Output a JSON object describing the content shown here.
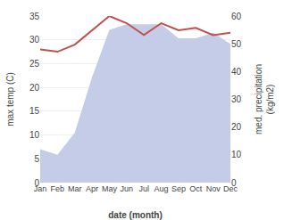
{
  "chart_data": {
    "type": "line",
    "xlabel": "date (month)",
    "ylabel": "max temp (C)",
    "y2label": "med. precipitation\n(kg/m2)",
    "categories": [
      "Jan",
      "Feb",
      "Mar",
      "Apr",
      "May",
      "Jun",
      "Jul",
      "Aug",
      "Sep",
      "Oct",
      "Nov",
      "Dec"
    ],
    "series": [
      {
        "type": "area",
        "axis": "y2",
        "color": "#c5cce8",
        "values": [
          12,
          10,
          18,
          38,
          55,
          57,
          57,
          57,
          52,
          52,
          54,
          50
        ]
      },
      {
        "type": "line",
        "color": "#c0504d",
        "values": [
          28,
          27.5,
          29,
          32,
          35,
          33.5,
          31,
          33.5,
          32,
          32.5,
          31,
          31.5
        ]
      }
    ],
    "ylim": [
      0,
      35
    ],
    "yticks": [
      0,
      5,
      10,
      15,
      20,
      25,
      30,
      35
    ],
    "y2lim": [
      0,
      60
    ],
    "y2ticks": [
      0,
      10,
      20,
      30,
      40,
      50,
      60
    ],
    "grid": true
  }
}
